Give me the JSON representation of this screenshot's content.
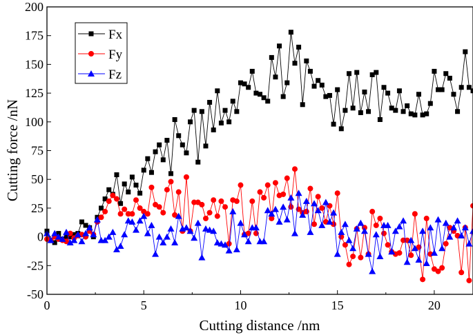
{
  "chart_data": {
    "type": "line",
    "xlabel": "Cutting distance /nm",
    "ylabel": "Cutting force /nN",
    "xlim": [
      0,
      22
    ],
    "ylim": [
      -50,
      200
    ],
    "xticks": [
      0,
      5,
      10,
      15,
      20
    ],
    "yticks": [
      -50,
      -25,
      0,
      25,
      50,
      75,
      100,
      125,
      150,
      175,
      200
    ],
    "grid": false,
    "legend_position": "top-left",
    "x_start": 0,
    "x_step": 0.2,
    "series": [
      {
        "name": "Fx",
        "color": "#000000",
        "marker": "square",
        "values": [
          5,
          -3,
          -5,
          3,
          -2,
          0,
          0,
          2,
          3,
          13,
          10,
          8,
          0,
          17,
          25,
          33,
          41,
          37,
          54,
          29,
          46,
          39,
          52,
          45,
          38,
          58,
          68,
          56,
          74,
          80,
          67,
          84,
          55,
          102,
          88,
          80,
          73,
          100,
          110,
          65,
          109,
          79,
          117,
          93,
          127,
          99,
          110,
          100,
          118,
          109,
          134,
          133,
          130,
          144,
          125,
          124,
          121,
          118,
          156,
          139,
          166,
          122,
          134,
          178,
          151,
          165,
          115,
          153,
          144,
          131,
          136,
          132,
          122,
          123,
          98,
          128,
          94,
          110,
          142,
          112,
          143,
          108,
          126,
          109,
          141,
          143,
          102,
          130,
          125,
          112,
          110,
          127,
          109,
          114,
          107,
          106,
          124,
          106,
          107,
          116,
          144,
          128,
          128,
          142,
          138,
          124,
          109,
          130,
          161,
          130,
          127
        ]
      },
      {
        "name": "Fy",
        "color": "#ff0000",
        "marker": "circle",
        "values": [
          -2,
          -3,
          0,
          -2,
          -3,
          -4,
          3,
          -1,
          1,
          2,
          0,
          5,
          2,
          13,
          17,
          22,
          31,
          36,
          33,
          20,
          24,
          20,
          20,
          32,
          25,
          22,
          20,
          43,
          28,
          26,
          21,
          41,
          48,
          19,
          39,
          5,
          52,
          5,
          30,
          30,
          28,
          16,
          21,
          32,
          18,
          31,
          26,
          -6,
          32,
          31,
          45,
          2,
          3,
          31,
          3,
          39,
          34,
          45,
          16,
          47,
          36,
          37,
          51,
          26,
          59,
          24,
          21,
          22,
          42,
          11,
          35,
          25,
          13,
          27,
          11,
          38,
          0,
          -7,
          -24,
          -17,
          7,
          -18,
          8,
          -15,
          22,
          10,
          16,
          3,
          -7,
          -13,
          -15,
          -14,
          -3,
          -3,
          -16,
          20,
          -9,
          -37,
          16,
          -15,
          -28,
          -30,
          -27,
          -6,
          8,
          5,
          1,
          -31,
          8,
          -38,
          27
        ]
      },
      {
        "name": "Fz",
        "color": "#0000ff",
        "marker": "triangle",
        "values": [
          3,
          -3,
          3,
          0,
          -2,
          4,
          -5,
          -3,
          2,
          -4,
          3,
          8,
          2,
          15,
          -3,
          -3,
          0,
          4,
          -11,
          -8,
          2,
          14,
          13,
          6,
          14,
          18,
          3,
          10,
          -15,
          0,
          -5,
          0,
          7,
          -5,
          18,
          7,
          8,
          5,
          -1,
          12,
          -18,
          7,
          6,
          5,
          -5,
          -6,
          -7,
          -12,
          22,
          -11,
          12,
          2,
          -4,
          8,
          8,
          -4,
          -4,
          23,
          20,
          24,
          13,
          26,
          15,
          34,
          3,
          38,
          19,
          31,
          4,
          29,
          23,
          10,
          30,
          13,
          21,
          -15,
          4,
          11,
          -3,
          -10,
          7,
          12,
          5,
          -15,
          -30,
          2,
          -17,
          10,
          10,
          -13,
          5,
          9,
          14,
          -22,
          -3,
          -10,
          -20,
          5,
          -23,
          8,
          -14,
          15,
          -10,
          12,
          0,
          8,
          14,
          1,
          8,
          -6,
          5
        ]
      }
    ]
  }
}
